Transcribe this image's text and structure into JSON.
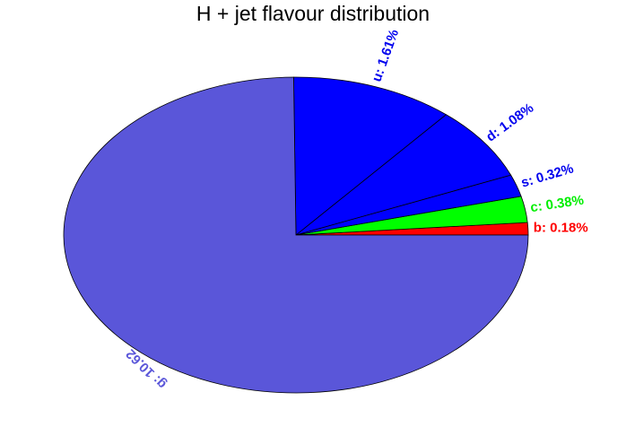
{
  "chart_data": {
    "type": "pie",
    "title": "H + jet flavour distribution",
    "slices": [
      {
        "label": "b: 0.18%",
        "value": 0.18,
        "color": "#ff0000",
        "label_color": "#ff0000"
      },
      {
        "label": "c: 0.38%",
        "value": 0.38,
        "color": "#00ff00",
        "label_color": "#00ee00"
      },
      {
        "label": "s: 0.32%",
        "value": 0.32,
        "color": "#0000ff",
        "label_color": "#0000ee"
      },
      {
        "label": "d: 1.08%",
        "value": 1.08,
        "color": "#0000ff",
        "label_color": "#0000ee"
      },
      {
        "label": "u: 1.61%",
        "value": 1.61,
        "color": "#0000ff",
        "label_color": "#0000ee"
      },
      {
        "label": "g: 10.62",
        "value": 10.62,
        "color": "#5a56d9",
        "label_color": "#5a56d9"
      }
    ],
    "start_direction": "east",
    "direction": "counterclockwise",
    "legend": "none"
  }
}
